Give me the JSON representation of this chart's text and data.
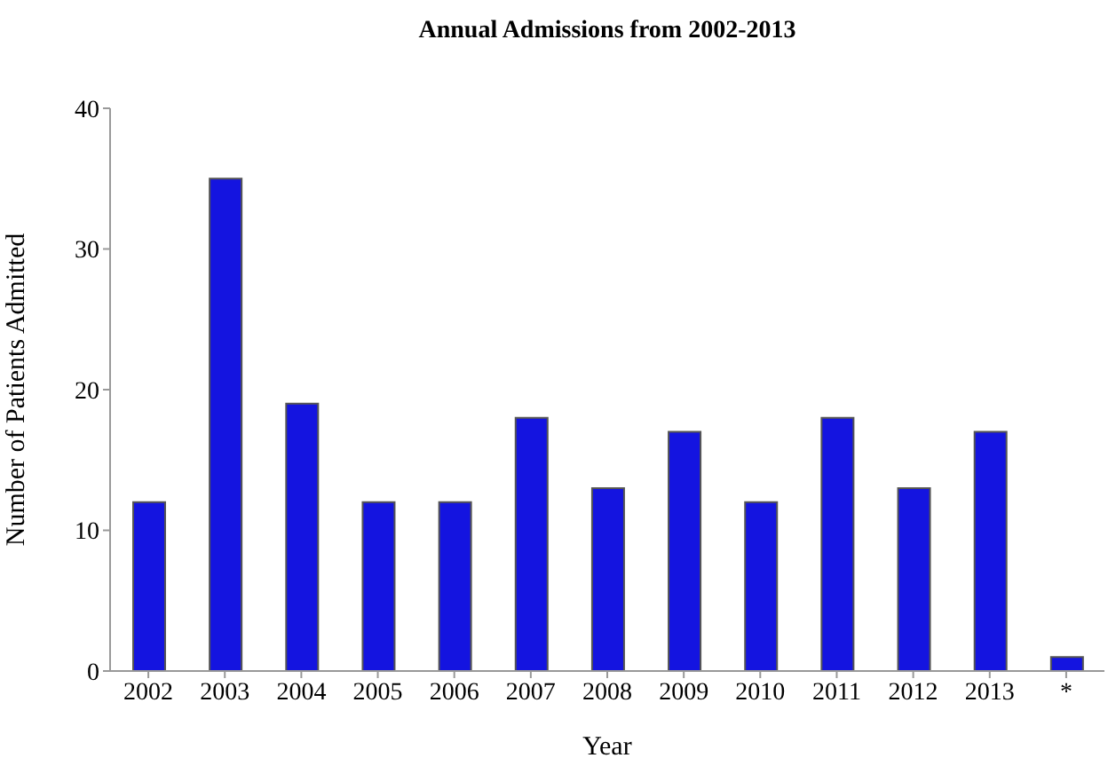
{
  "chart_data": {
    "type": "bar",
    "title": "Annual Admissions from 2002-2013",
    "xlabel": "Year",
    "ylabel": "Number of Patients Admitted",
    "categories": [
      "2002",
      "2003",
      "2004",
      "2005",
      "2006",
      "2007",
      "2008",
      "2009",
      "2010",
      "2011",
      "2012",
      "2013",
      "*"
    ],
    "values": [
      12,
      35,
      19,
      12,
      12,
      18,
      13,
      17,
      12,
      18,
      13,
      17,
      1
    ],
    "color": "#1414e0",
    "ylim": [
      0,
      40
    ],
    "yticks": [
      0,
      10,
      20,
      30,
      40
    ],
    "grid": false,
    "legend": false
  }
}
